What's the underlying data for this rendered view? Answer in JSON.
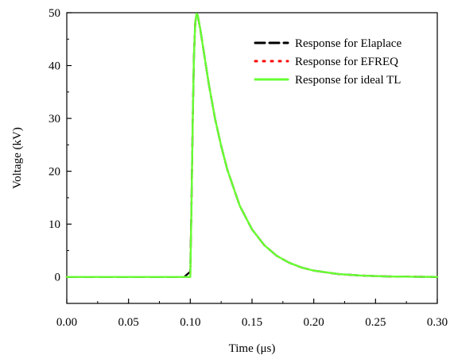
{
  "chart_data": {
    "type": "line",
    "xlabel": "Time (μs)",
    "ylabel": "Voltage (kV)",
    "xlim": [
      0.0,
      0.3
    ],
    "ylim": [
      -5,
      50
    ],
    "xticks": [
      "0.00",
      "0.05",
      "0.10",
      "0.15",
      "0.20",
      "0.25",
      "0.30"
    ],
    "yticks": [
      "0",
      "10",
      "20",
      "30",
      "40",
      "50"
    ],
    "legend_position": "top-right",
    "grid": false,
    "series": [
      {
        "name": "Response for Elaplace",
        "color": "#000000",
        "style": "dashed",
        "x": [
          0.0,
          0.05,
          0.095,
          0.098,
          0.1,
          0.101,
          0.102,
          0.103,
          0.104,
          0.105,
          0.106,
          0.108,
          0.11,
          0.115,
          0.12,
          0.125,
          0.13,
          0.14,
          0.15,
          0.16,
          0.17,
          0.18,
          0.19,
          0.2,
          0.22,
          0.24,
          0.26,
          0.28,
          0.3
        ],
        "y": [
          0,
          0,
          0,
          0.6,
          1.0,
          14,
          30,
          42,
          48,
          49.8,
          49.5,
          47,
          44,
          36.5,
          30,
          24.8,
          20.3,
          13.5,
          9,
          6,
          4,
          2.7,
          1.8,
          1.2,
          0.55,
          0.25,
          0.1,
          0.05,
          0
        ]
      },
      {
        "name": "Response for EFREQ",
        "color": "#ff0000",
        "style": "dotted",
        "x": [
          0.0,
          0.05,
          0.095,
          0.1,
          0.101,
          0.102,
          0.103,
          0.104,
          0.105,
          0.106,
          0.108,
          0.11,
          0.115,
          0.12,
          0.125,
          0.13,
          0.14,
          0.15,
          0.16,
          0.17,
          0.18,
          0.19,
          0.2,
          0.22,
          0.24,
          0.26,
          0.28,
          0.3
        ],
        "y": [
          0,
          0,
          0,
          0,
          14,
          30,
          42,
          48,
          49.8,
          49.5,
          47,
          44,
          36.5,
          30,
          24.8,
          20.3,
          13.5,
          9,
          6,
          4,
          2.7,
          1.8,
          1.2,
          0.55,
          0.25,
          0.1,
          0.05,
          0
        ]
      },
      {
        "name": "Response for ideal TL",
        "color": "#66ff33",
        "style": "solid",
        "x": [
          0.0,
          0.05,
          0.095,
          0.1,
          0.101,
          0.102,
          0.103,
          0.104,
          0.105,
          0.106,
          0.108,
          0.11,
          0.115,
          0.12,
          0.125,
          0.13,
          0.14,
          0.15,
          0.16,
          0.17,
          0.18,
          0.19,
          0.2,
          0.22,
          0.24,
          0.26,
          0.28,
          0.3
        ],
        "y": [
          0,
          0,
          0,
          0,
          14,
          30,
          42,
          48,
          49.8,
          49.5,
          47,
          44,
          36.5,
          30,
          24.8,
          20.3,
          13.5,
          9,
          6,
          4,
          2.7,
          1.8,
          1.2,
          0.55,
          0.25,
          0.1,
          0.05,
          0
        ]
      }
    ]
  }
}
